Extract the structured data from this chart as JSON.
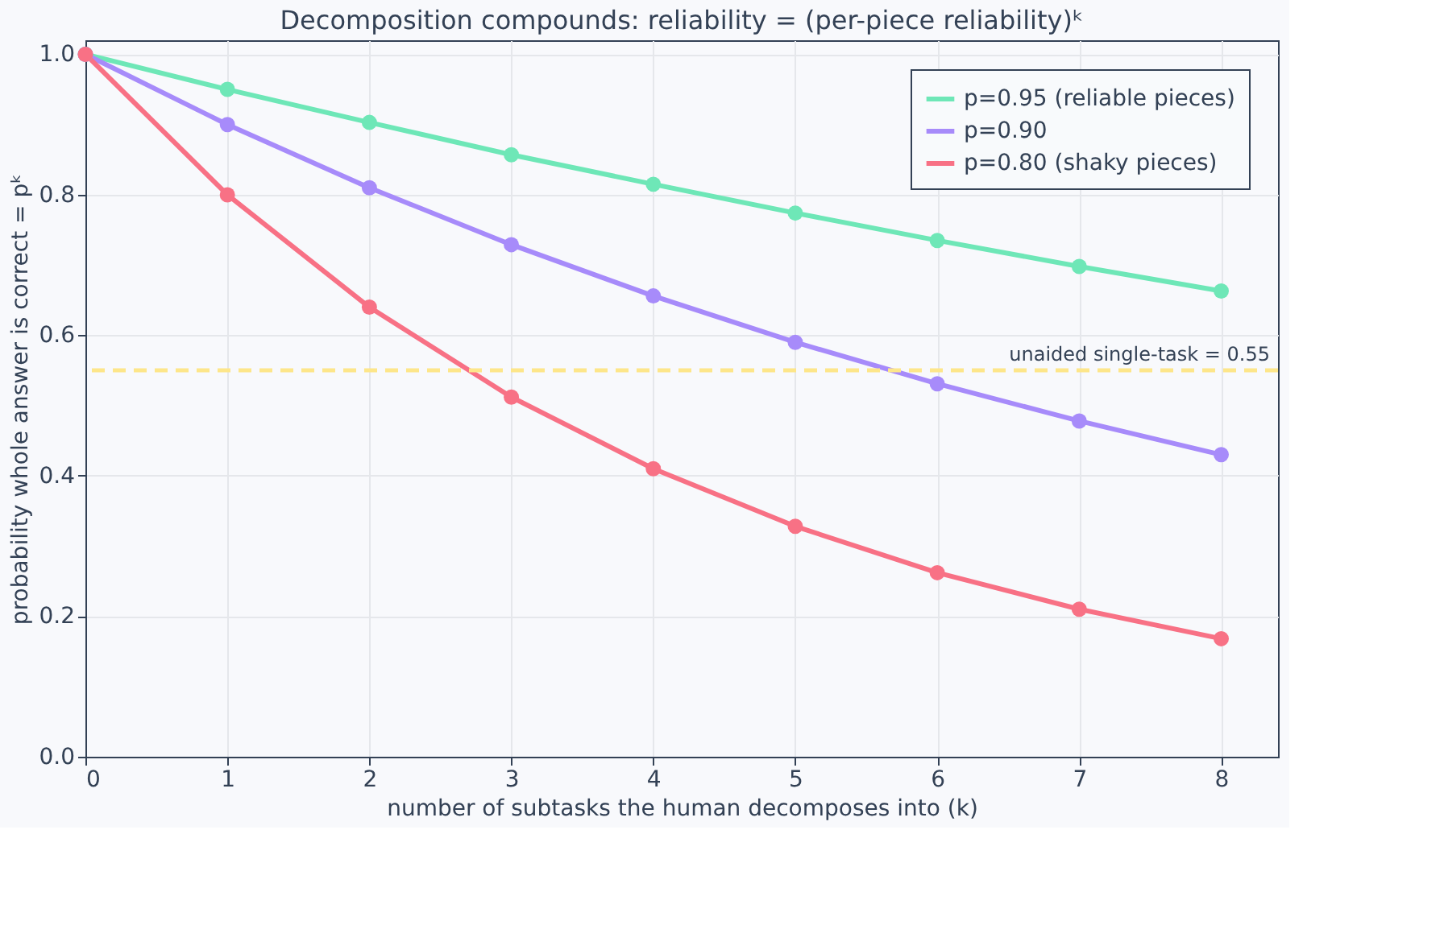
{
  "chart_data": {
    "type": "line",
    "title": "Decomposition compounds: reliability = (per-piece reliability)ᵏ",
    "xlabel": "number of subtasks the human decomposes into (k)",
    "ylabel": "probability whole answer is correct  =  pᵏ",
    "x": [
      0,
      1,
      2,
      3,
      4,
      5,
      6,
      7,
      8
    ],
    "series": [
      {
        "name": "p=0.95 (reliable pieces)",
        "color": "#6ee7b7",
        "values": [
          1.0,
          0.95,
          0.903,
          0.857,
          0.815,
          0.774,
          0.735,
          0.698,
          0.663
        ]
      },
      {
        "name": "p=0.90",
        "color": "#a78bfa",
        "values": [
          1.0,
          0.9,
          0.81,
          0.729,
          0.656,
          0.59,
          0.531,
          0.478,
          0.43
        ]
      },
      {
        "name": "p=0.80 (shaky pieces)",
        "color": "#f87185",
        "values": [
          1.0,
          0.8,
          0.64,
          0.512,
          0.41,
          0.328,
          0.262,
          0.21,
          0.168
        ]
      }
    ],
    "xlim": [
      0,
      8.4
    ],
    "xticks": [
      0,
      1,
      2,
      3,
      4,
      5,
      6,
      7,
      8
    ],
    "ylim": [
      0,
      1.02
    ],
    "yticks": [
      {
        "value": 0,
        "label": "0.0"
      },
      0.2,
      0.4,
      0.6,
      0.8,
      {
        "value": 1,
        "label": "1.0"
      }
    ],
    "ref_lines": [
      {
        "axis": "y",
        "value": 0.55,
        "label": "unaided single-task = 0.55",
        "color": "#fde68a",
        "line_style": "dashed"
      }
    ],
    "grid": true,
    "legend": "top right",
    "marker": "circle",
    "line_style": "solid"
  }
}
